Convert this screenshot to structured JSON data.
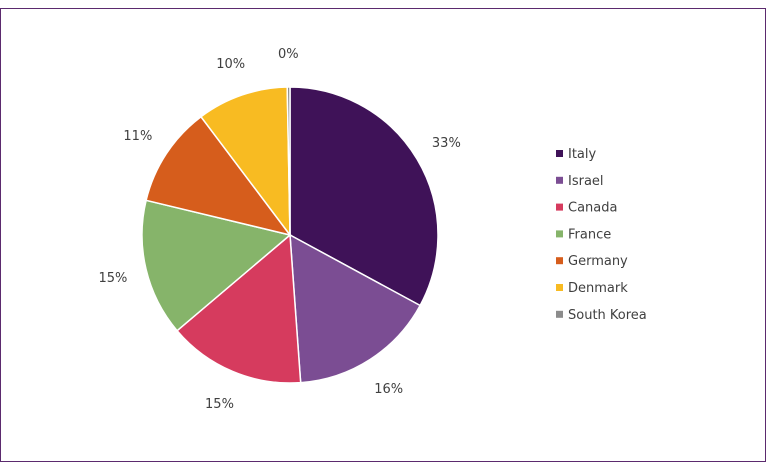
{
  "chart_data": {
    "type": "pie",
    "title": "",
    "legend_position": "right",
    "slices": [
      {
        "label": "Italy",
        "value": 33,
        "display": "33%",
        "color": "#3f1258"
      },
      {
        "label": "Israel",
        "value": 16,
        "display": "16%",
        "color": "#7b4d93"
      },
      {
        "label": "Canada",
        "value": 15,
        "display": "15%",
        "color": "#d63b5e"
      },
      {
        "label": "France",
        "value": 15,
        "display": "15%",
        "color": "#86b46a"
      },
      {
        "label": "Germany",
        "value": 11,
        "display": "11%",
        "color": "#d65d1c"
      },
      {
        "label": "Denmark",
        "value": 10,
        "display": "10%",
        "color": "#f8bb22"
      },
      {
        "label": "South Korea",
        "value": 0.3,
        "display": "0%",
        "color": "#8c8c8c"
      }
    ]
  }
}
